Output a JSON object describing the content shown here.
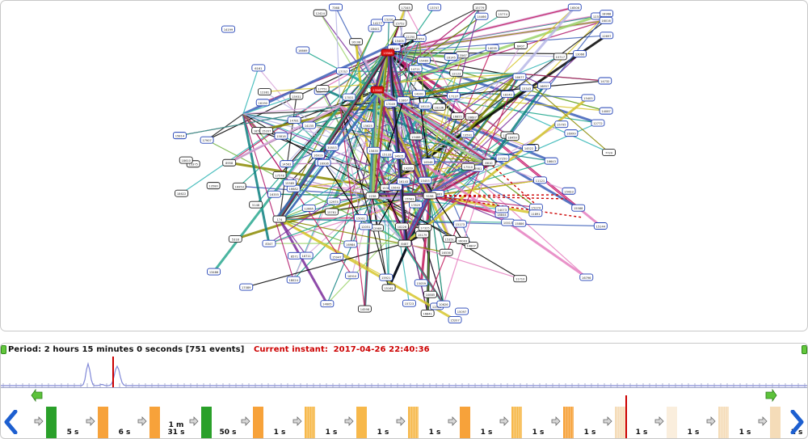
{
  "timeline": {
    "period_text": "Period: 2 hours 15 minutes 0 seconds [751 events]",
    "instant_label": "Current instant:",
    "instant_value": "2017-04-26 22:40:36",
    "marker_color": "#cc0000"
  },
  "event_strip": {
    "gaps": [
      "5 s",
      "6 s",
      "1 m\n31 s",
      "50 s",
      "1 s",
      "1 s",
      "1 s",
      "1 s",
      "1 s",
      "1 s",
      "1 s",
      "1 s",
      "1 s",
      "1 s",
      "1 s",
      "1 s"
    ],
    "blocks": [
      {
        "color": "#2aa02a",
        "style": "solid"
      },
      {
        "color": "#f7a23a",
        "style": "solid"
      },
      {
        "color": "#f7a23a",
        "style": "solid"
      },
      {
        "color": "#2aa02a",
        "style": "solid"
      },
      {
        "color": "#f7a23a",
        "style": "solid"
      },
      {
        "color": "#f7b84a",
        "style": "striped"
      },
      {
        "color": "#f7b84a",
        "style": "solid"
      },
      {
        "color": "#f7b84a",
        "style": "striped"
      },
      {
        "color": "#f7a23a",
        "style": "solid"
      },
      {
        "color": "#f7b84a",
        "style": "striped"
      },
      {
        "color": "#f7a23a",
        "style": "striped"
      },
      {
        "color": "#f5dcb8",
        "style": "striped"
      },
      {
        "color": "#faeedd",
        "style": "solid"
      },
      {
        "color": "#f5dcb8",
        "style": "striped"
      },
      {
        "color": "#f5dcb8",
        "style": "solid"
      }
    ]
  },
  "graph": {
    "highlighted_labels": [
      "15568",
      "13568"
    ],
    "node_labels": [
      "18240",
      "15133",
      "15144",
      "8347",
      "15161",
      "12950",
      "5148",
      "30320",
      "12969",
      "15179",
      "15207",
      "13580",
      "18571",
      "15314",
      "10013",
      "5318",
      "14563",
      "8365",
      "6161",
      "15343",
      "17345",
      "15351",
      "13375",
      "15405",
      "12356",
      "15455",
      "15465",
      "12561",
      "30553",
      "8571",
      "14598",
      "15588",
      "17578",
      "16677",
      "18610",
      "18622",
      "10626",
      "16682",
      "16711",
      "15717",
      "7720",
      "14721",
      "13747",
      "17757",
      "15761",
      "15774",
      "14781",
      "16796",
      "15814",
      "17829",
      "18844",
      "16855",
      "16857",
      "15869",
      "10885",
      "16910",
      "15921",
      "16936",
      "16953",
      "18968",
      "16984",
      "16999",
      "16016",
      "14035",
      "12051",
      "13066",
      "17089",
      "16108",
      "11121",
      "17137",
      "14155",
      "14177",
      "16190",
      "15207",
      "16236",
      "12250",
      "14269",
      "15291",
      "17325",
      "13344",
      "7368",
      "15386",
      "15405",
      "12424",
      "18441",
      "14466",
      "15488",
      "16506",
      "14522",
      "16548",
      "13567",
      "15585",
      "14605",
      "15625",
      "16643",
      "12665",
      "16687",
      "11710",
      "14732",
      "15752",
      "12772",
      "15795",
      "15818",
      "16841",
      "11867",
      "15886",
      "17907",
      "15931",
      "8958",
      "16981",
      "15001",
      "18024",
      "17049",
      "14073",
      "15097",
      "12123",
      "16145",
      "15173",
      "14199",
      "10226",
      "17250",
      "15274",
      "14301",
      "13329",
      "16355",
      "12381",
      "8407",
      "15433",
      "18459",
      "13486",
      "17510",
      "16536",
      "15563",
      "13591",
      "14615",
      "15643",
      "16669",
      "12697",
      "15723",
      "17751",
      "15779",
      "14807",
      "15835",
      "18863",
      "11891",
      "16919",
      "15947",
      "12975",
      "16003",
      "17031",
      "15059",
      "14087",
      "18115",
      "16143"
    ]
  }
}
